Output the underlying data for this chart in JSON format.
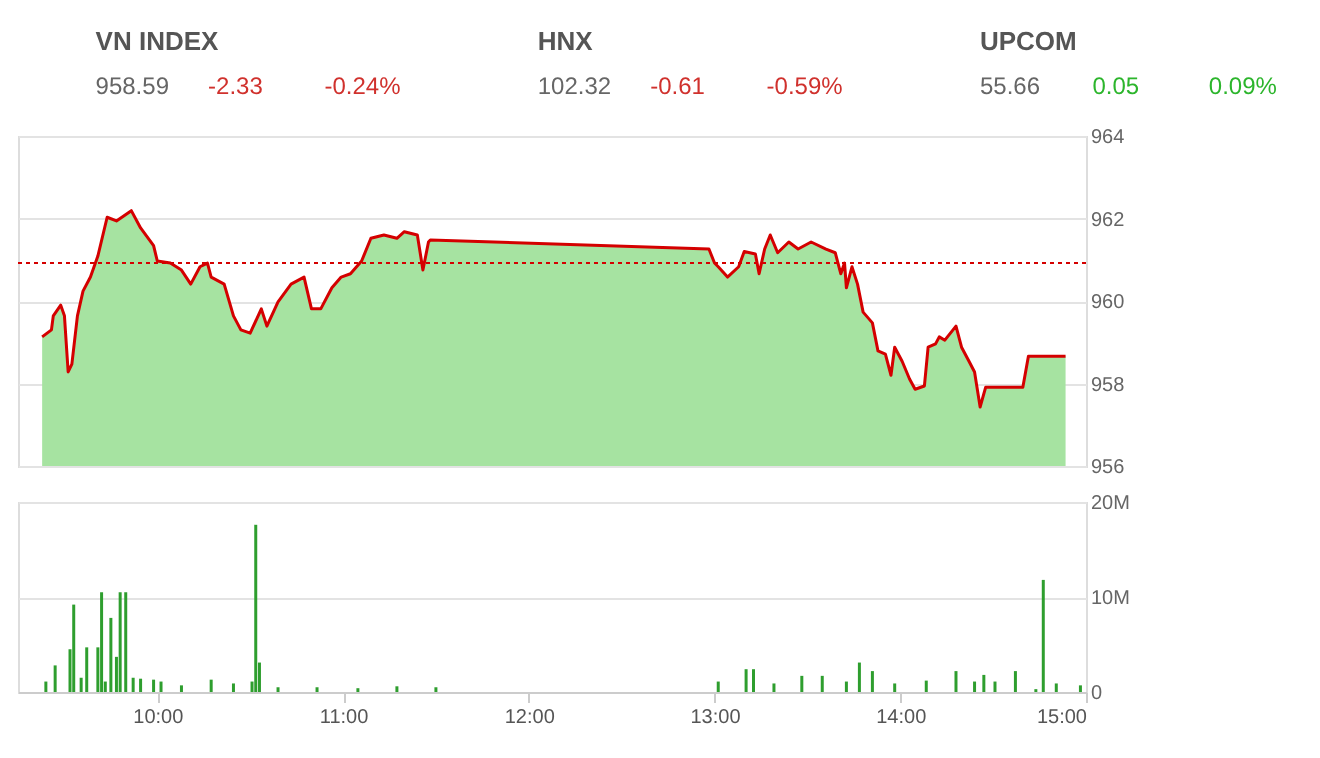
{
  "chart_data": [
    {
      "type": "other",
      "annotations": [
        "VN INDEX",
        "958.59",
        "-2.33",
        "-0.24%",
        "HNX",
        "102.32",
        "-0.61",
        "-0.59%",
        "UPCOM",
        "55.66",
        "0.05",
        "0.09%"
      ]
    },
    {
      "type": "area",
      "xlim": [
        9.25,
        15.0
      ],
      "ylim": [
        956,
        964
      ],
      "yticks": [
        956,
        958,
        960,
        962,
        964
      ],
      "grid": "y",
      "tick_labels": "y",
      "ref_lines": [
        {
          "axis": "y",
          "value": 960.92,
          "color": "#d40000",
          "line_style": "dotted"
        }
      ],
      "x": [
        9.38,
        9.43,
        9.44,
        9.48,
        9.5,
        9.52,
        9.54,
        9.57,
        9.6,
        9.64,
        9.68,
        9.73,
        9.78,
        9.86,
        9.91,
        9.98,
        10.0,
        10.07,
        10.13,
        10.18,
        10.23,
        10.27,
        10.29,
        10.36,
        10.41,
        10.45,
        10.5,
        10.56,
        10.59,
        10.65,
        10.72,
        10.79,
        10.83,
        10.88,
        10.94,
        10.99,
        11.04,
        11.1,
        11.15,
        11.22,
        11.29,
        11.33,
        11.4,
        11.43,
        11.46,
        11.47,
        12.97,
        13.0,
        13.02,
        13.07,
        13.13,
        13.16,
        13.22,
        13.24,
        13.27,
        13.3,
        13.34,
        13.4,
        13.45,
        13.52,
        13.6,
        13.65,
        13.68,
        13.7,
        13.71,
        13.74,
        13.77,
        13.8,
        13.85,
        13.88,
        13.92,
        13.95,
        13.97,
        14.01,
        14.05,
        14.08,
        14.13,
        14.15,
        14.19,
        14.21,
        14.24,
        14.3,
        14.33,
        14.37,
        14.4,
        14.43,
        14.46,
        14.66,
        14.69,
        14.89
      ],
      "series": [
        {
          "type": "area",
          "color": "#a6e3a1",
          "values": [
            959.13,
            959.3,
            959.64,
            959.9,
            959.64,
            958.28,
            958.47,
            959.64,
            960.24,
            960.58,
            961.09,
            962.03,
            961.94,
            962.19,
            961.77,
            961.34,
            960.97,
            960.92,
            960.75,
            960.41,
            960.83,
            960.92,
            960.58,
            960.41,
            959.64,
            959.3,
            959.22,
            959.81,
            959.39,
            959.98,
            960.41,
            960.58,
            959.81,
            959.81,
            960.32,
            960.58,
            960.66,
            960.97,
            961.52,
            961.6,
            961.52,
            961.68,
            961.6,
            960.75,
            961.43,
            961.48,
            961.26,
            960.92,
            960.83,
            960.58,
            960.83,
            961.2,
            961.14,
            960.66,
            961.26,
            961.6,
            961.17,
            961.43,
            961.26,
            961.43,
            961.26,
            961.17,
            960.66,
            960.92,
            960.32,
            960.83,
            960.41,
            959.73,
            959.47,
            958.79,
            958.71,
            958.2,
            958.88,
            958.54,
            958.11,
            957.86,
            957.94,
            958.88,
            958.96,
            959.13,
            959.05,
            959.39,
            958.88,
            958.54,
            958.28,
            957.43,
            957.91,
            957.91,
            958.66,
            958.66
          ]
        },
        {
          "type": "line",
          "color": "#d40000",
          "values": [
            959.13,
            959.3,
            959.64,
            959.9,
            959.64,
            958.28,
            958.47,
            959.64,
            960.24,
            960.58,
            961.09,
            962.03,
            961.94,
            962.19,
            961.77,
            961.34,
            960.97,
            960.92,
            960.75,
            960.41,
            960.83,
            960.92,
            960.58,
            960.41,
            959.64,
            959.3,
            959.22,
            959.81,
            959.39,
            959.98,
            960.41,
            960.58,
            959.81,
            959.81,
            960.32,
            960.58,
            960.66,
            960.97,
            961.52,
            961.6,
            961.52,
            961.68,
            961.6,
            960.75,
            961.43,
            961.48,
            961.26,
            960.92,
            960.83,
            960.58,
            960.83,
            961.2,
            961.14,
            960.66,
            961.26,
            961.6,
            961.17,
            961.43,
            961.26,
            961.43,
            961.26,
            961.17,
            960.66,
            960.92,
            960.32,
            960.83,
            960.41,
            959.73,
            959.47,
            958.79,
            958.71,
            958.2,
            958.88,
            958.54,
            958.11,
            957.86,
            957.94,
            958.88,
            958.96,
            959.13,
            959.05,
            959.39,
            958.88,
            958.54,
            958.28,
            957.43,
            957.91,
            957.91,
            958.66,
            958.66
          ]
        }
      ]
    },
    {
      "type": "bar",
      "xlim": [
        9.25,
        15.0
      ],
      "ylim": [
        0,
        20
      ],
      "yticks": [
        0,
        {
          "value": 10,
          "label": "10M"
        },
        {
          "value": 20,
          "label": "20M"
        }
      ],
      "grid": "y",
      "xticks": [
        {
          "value": 10,
          "label": "10:00"
        },
        {
          "value": 11,
          "label": "11:00"
        },
        {
          "value": 12,
          "label": "12:00"
        },
        {
          "value": 13,
          "label": "13:00"
        },
        {
          "value": 14,
          "label": "14:00"
        },
        {
          "value": 15,
          "label": "15:00"
        }
      ],
      "color": "#2e9e2e",
      "x": [
        9.4,
        9.45,
        9.53,
        9.55,
        9.59,
        9.62,
        9.68,
        9.7,
        9.72,
        9.75,
        9.78,
        9.8,
        9.83,
        9.87,
        9.91,
        9.98,
        10.02,
        10.13,
        10.29,
        10.41,
        10.51,
        10.53,
        10.55,
        10.65,
        10.86,
        11.08,
        11.29,
        11.5,
        13.02,
        13.17,
        13.21,
        13.32,
        13.47,
        13.58,
        13.71,
        13.78,
        13.85,
        13.97,
        14.14,
        14.3,
        14.4,
        14.45,
        14.51,
        14.62,
        14.73,
        14.77,
        14.84,
        14.97
      ],
      "values": [
        1.1,
        2.8,
        4.5,
        9.2,
        1.5,
        4.7,
        4.7,
        10.5,
        1.1,
        7.8,
        3.7,
        10.5,
        10.5,
        1.5,
        1.4,
        1.3,
        1.1,
        0.7,
        1.3,
        0.9,
        1.1,
        17.6,
        3.1,
        0.5,
        0.5,
        0.4,
        0.6,
        0.5,
        1.1,
        2.4,
        2.4,
        0.9,
        1.7,
        1.7,
        1.1,
        3.1,
        2.2,
        0.9,
        1.2,
        2.2,
        1.1,
        1.8,
        1.1,
        2.2,
        0.3,
        11.8,
        0.9,
        0.7
      ]
    }
  ]
}
